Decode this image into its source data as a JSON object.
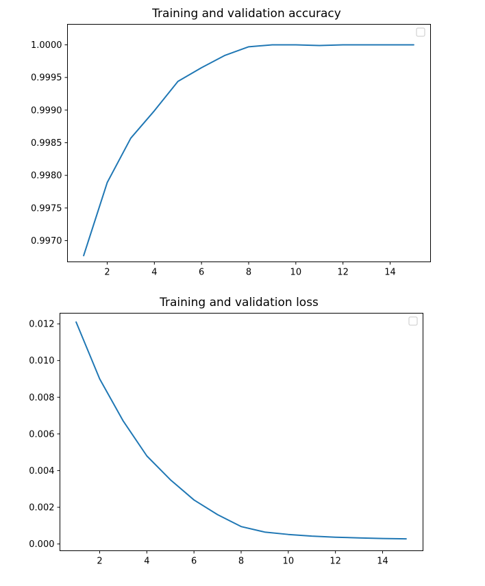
{
  "chart_data": [
    {
      "type": "line",
      "title": "Training and validation accuracy",
      "xlabel": "",
      "ylabel": "",
      "xlim": [
        0.3,
        15.7
      ],
      "ylim": [
        0.99668,
        1.00032
      ],
      "xticks": [
        2,
        4,
        6,
        8,
        10,
        12,
        14
      ],
      "xtick_labels": [
        "2",
        "4",
        "6",
        "8",
        "10",
        "12",
        "14"
      ],
      "yticks": [
        0.997,
        0.9975,
        0.998,
        0.9985,
        0.999,
        0.9995,
        1.0
      ],
      "ytick_labels": [
        "0.9970",
        "0.9975",
        "0.9980",
        "0.9985",
        "0.9990",
        "0.9995",
        "1.0000"
      ],
      "grid": false,
      "legend": {
        "placement": "top-right",
        "entries": []
      },
      "series": [
        {
          "color": "#1f77b4",
          "x": [
            1,
            2,
            3,
            4,
            5,
            6,
            7,
            8,
            9,
            10,
            11,
            12,
            13,
            14,
            15
          ],
          "y": [
            0.99677,
            0.99789,
            0.99857,
            0.99899,
            0.99944,
            0.99965,
            0.99984,
            0.99997,
            1.0,
            1.0,
            0.99999,
            1.0,
            1.0,
            1.0,
            1.0
          ]
        }
      ]
    },
    {
      "type": "line",
      "title": "Training  and validation loss",
      "xlabel": "",
      "ylabel": "",
      "xlim": [
        0.3,
        15.7
      ],
      "ylim": [
        -0.00035,
        0.0126
      ],
      "xticks": [
        2,
        4,
        6,
        8,
        10,
        12,
        14
      ],
      "xtick_labels": [
        "2",
        "4",
        "6",
        "8",
        "10",
        "12",
        "14"
      ],
      "yticks": [
        0.0,
        0.002,
        0.004,
        0.006,
        0.008,
        0.01,
        0.012
      ],
      "ytick_labels": [
        "0.000",
        "0.002",
        "0.004",
        "0.006",
        "0.008",
        "0.010",
        "0.012"
      ],
      "grid": false,
      "legend": {
        "placement": "top-right",
        "entries": []
      },
      "series": [
        {
          "color": "#1f77b4",
          "x": [
            1,
            2,
            3,
            4,
            5,
            6,
            7,
            8,
            9,
            10,
            11,
            12,
            13,
            14,
            15
          ],
          "y": [
            0.0121,
            0.009,
            0.0067,
            0.0048,
            0.0035,
            0.0024,
            0.0016,
            0.00095,
            0.00065,
            0.00052,
            0.00043,
            0.00037,
            0.00033,
            0.0003,
            0.00028
          ]
        }
      ]
    }
  ]
}
